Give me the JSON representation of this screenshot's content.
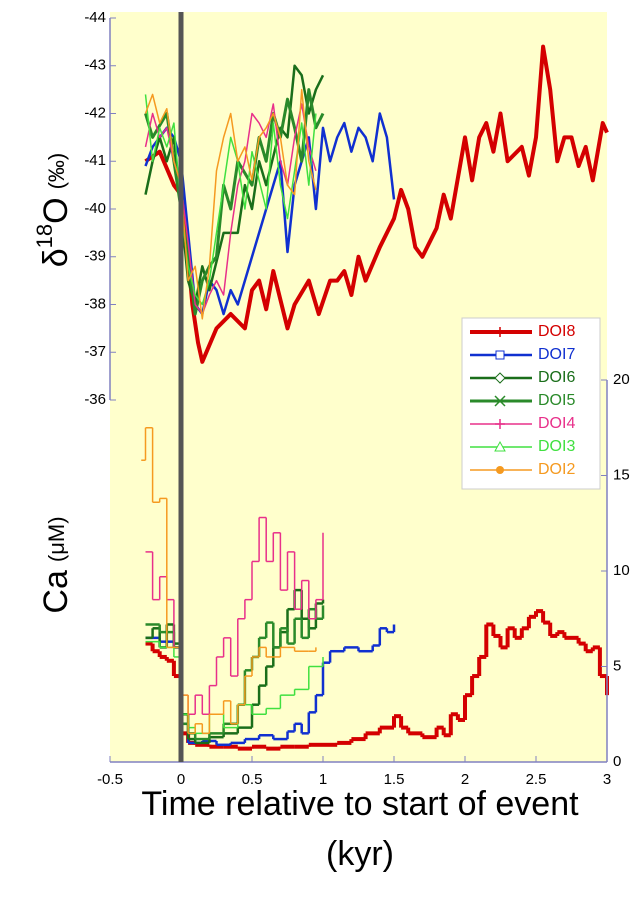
{
  "chart_data": [
    {
      "type": "line",
      "y_label_parts": [
        "δ",
        "18",
        "O",
        "(‰)"
      ],
      "xlim": [
        -0.5,
        3
      ],
      "ylim": [
        -36,
        -44
      ],
      "yticks": [
        -44,
        -43,
        -42,
        -41,
        -40,
        -39,
        -38,
        -37,
        -36
      ],
      "axis_side": "left",
      "legend": "right",
      "series": [
        {
          "name": "DOI8",
          "color": "#d40000",
          "width": 4,
          "marker": "plus",
          "x": [
            -0.25,
            -0.15,
            -0.05,
            0,
            0.05,
            0.08,
            0.12,
            0.15,
            0.25,
            0.35,
            0.45,
            0.5,
            0.55,
            0.6,
            0.65,
            0.75,
            0.8,
            0.9,
            0.97,
            1.05,
            1.1,
            1.15,
            1.2,
            1.25,
            1.3,
            1.4,
            1.45,
            1.5,
            1.55,
            1.6,
            1.65,
            1.7,
            1.8,
            1.85,
            1.9,
            2.0,
            2.05,
            2.1,
            2.15,
            2.2,
            2.25,
            2.3,
            2.4,
            2.45,
            2.5,
            2.55,
            2.6,
            2.65,
            2.7,
            2.75,
            2.8,
            2.85,
            2.9,
            2.97,
            3.0
          ],
          "values": [
            -41,
            -41.2,
            -40.5,
            -40.3,
            -39,
            -38,
            -37.2,
            -36.8,
            -37.5,
            -37.8,
            -37.5,
            -38.3,
            -38.5,
            -37.9,
            -38.7,
            -37.5,
            -38,
            -38.5,
            -37.8,
            -38.5,
            -38.5,
            -38.7,
            -38.2,
            -39,
            -38.5,
            -39.2,
            -39.5,
            -39.8,
            -40.4,
            -40,
            -39.2,
            -39,
            -39.6,
            -40.3,
            -39.8,
            -41.5,
            -40.6,
            -41.5,
            -41.8,
            -41.2,
            -42,
            -41,
            -41.3,
            -40.7,
            -41.5,
            -43.4,
            -42.5,
            -41,
            -41.5,
            -41.5,
            -40.9,
            -41.3,
            -40.6,
            -41.8,
            -41.6
          ]
        },
        {
          "name": "DOI7",
          "color": "#1030d0",
          "width": 2.5,
          "marker": "square",
          "x": [
            -0.25,
            -0.2,
            -0.1,
            -0.05,
            0,
            0.05,
            0.1,
            0.15,
            0.2,
            0.25,
            0.3,
            0.35,
            0.4,
            0.5,
            0.55,
            0.6,
            0.7,
            0.75,
            0.8,
            0.85,
            0.9,
            0.95,
            1.0,
            1.05,
            1.1,
            1.15,
            1.2,
            1.25,
            1.3,
            1.35,
            1.4,
            1.45,
            1.5
          ],
          "values": [
            -40.9,
            -41.3,
            -41.7,
            -41.5,
            -41,
            -39.5,
            -38,
            -37.8,
            -38.5,
            -38.3,
            -37.8,
            -38.3,
            -38,
            -39,
            -39.5,
            -40,
            -41,
            -39.1,
            -40.5,
            -41,
            -41.5,
            -40,
            -41.7,
            -41,
            -41.5,
            -41.8,
            -41.2,
            -41.7,
            -41.5,
            -41,
            -42,
            -41.5,
            -40.2
          ]
        },
        {
          "name": "DOI6",
          "color": "#1a6e1a",
          "width": 2.5,
          "marker": "diamond",
          "x": [
            -0.25,
            -0.2,
            -0.15,
            -0.1,
            -0.05,
            0,
            0.05,
            0.1,
            0.15,
            0.2,
            0.3,
            0.4,
            0.45,
            0.5,
            0.55,
            0.6,
            0.7,
            0.75,
            0.8,
            0.85,
            0.9,
            0.95,
            1.0
          ],
          "values": [
            -40.3,
            -41,
            -41.5,
            -41,
            -41.5,
            -40,
            -38.5,
            -38,
            -38.8,
            -38.3,
            -39.5,
            -39.5,
            -40.5,
            -40,
            -41,
            -40.5,
            -41.7,
            -41.5,
            -43,
            -42.8,
            -42,
            -42.5,
            -42.8
          ]
        },
        {
          "name": "DOI5",
          "color": "#2a8a2a",
          "width": 3,
          "marker": "x",
          "x": [
            -0.25,
            -0.2,
            -0.1,
            -0.05,
            0,
            0.05,
            0.1,
            0.15,
            0.2,
            0.25,
            0.3,
            0.35,
            0.4,
            0.5,
            0.55,
            0.6,
            0.65,
            0.7,
            0.75,
            0.8,
            0.85,
            0.9,
            0.95,
            1.0
          ],
          "values": [
            -42,
            -41.5,
            -42,
            -41,
            -40,
            -39,
            -37.8,
            -38.5,
            -38.8,
            -39,
            -40.5,
            -40,
            -41,
            -40.5,
            -41.5,
            -41,
            -42,
            -41.5,
            -42.3,
            -41.7,
            -41,
            -42.5,
            -41.7,
            -42
          ]
        },
        {
          "name": "DOI4",
          "color": "#e8308a",
          "width": 1.5,
          "marker": "plus",
          "x": [
            -0.25,
            -0.2,
            -0.15,
            -0.1,
            -0.05,
            0,
            0.05,
            0.1,
            0.15,
            0.2,
            0.25,
            0.3,
            0.35,
            0.4,
            0.45,
            0.5,
            0.55,
            0.6,
            0.65,
            0.7,
            0.75,
            0.8,
            0.85,
            0.9,
            0.95
          ],
          "values": [
            -41.3,
            -42,
            -41.5,
            -41.7,
            -41,
            -40.5,
            -39.3,
            -38,
            -37.8,
            -38.2,
            -38.5,
            -38.2,
            -39.5,
            -40.5,
            -41,
            -42,
            -41.8,
            -41.5,
            -42.2,
            -41,
            -40.5,
            -41.5,
            -42.2,
            -41.3,
            -40.8
          ]
        },
        {
          "name": "DOI3",
          "color": "#40e040",
          "width": 1.5,
          "marker": "triangle",
          "x": [
            -0.25,
            -0.2,
            -0.15,
            -0.1,
            -0.05,
            0,
            0.05,
            0.1,
            0.15,
            0.2,
            0.25,
            0.3,
            0.35,
            0.4,
            0.45,
            0.5,
            0.6,
            0.65,
            0.7,
            0.75,
            0.8,
            0.85,
            0.9,
            0.95
          ],
          "values": [
            -42.4,
            -41,
            -41.7,
            -41.3,
            -41.8,
            -40,
            -38.8,
            -38.2,
            -38,
            -38.5,
            -39.5,
            -40.5,
            -41.5,
            -41,
            -40,
            -41.2,
            -40,
            -41.8,
            -40.5,
            -39.8,
            -40.8,
            -41.8,
            -40.5,
            -42
          ]
        },
        {
          "name": "DOI2",
          "color": "#f59a20",
          "width": 1.5,
          "marker": "circle",
          "x": [
            -0.25,
            -0.2,
            -0.15,
            -0.1,
            -0.05,
            0,
            0.05,
            0.1,
            0.15,
            0.2,
            0.25,
            0.3,
            0.35,
            0.4,
            0.45,
            0.5,
            0.55,
            0.6,
            0.65,
            0.7,
            0.75,
            0.8,
            0.85,
            0.9,
            0.95
          ],
          "values": [
            -42,
            -42.4,
            -41.8,
            -42.1,
            -41,
            -40.5,
            -38.5,
            -38.8,
            -37.7,
            -38.8,
            -40.8,
            -41.5,
            -42,
            -41,
            -41.3,
            -40.6,
            -41.5,
            -41.7,
            -42,
            -41.5,
            -40.5,
            -40.3,
            -42.5,
            -41,
            -40.4
          ]
        }
      ]
    },
    {
      "type": "step",
      "y_label_parts": [
        "Ca",
        "(μM)"
      ],
      "xlim": [
        -0.5,
        3
      ],
      "xticks": [
        -0.5,
        0,
        0.5,
        1,
        1.5,
        2,
        2.5,
        3
      ],
      "y2lim": [
        0,
        20
      ],
      "y2ticks": [
        0,
        5,
        10,
        15,
        20
      ],
      "vline": 0,
      "x_label": [
        "Time relative to start of event",
        "(kyr)"
      ],
      "series": [
        {
          "color": "#d40000",
          "width": 4,
          "axis": "y2",
          "x": [
            -0.25,
            -0.2,
            -0.15,
            -0.1,
            -0.05,
            0,
            0.05,
            0.1,
            0.2,
            0.3,
            0.4,
            0.5,
            0.6,
            0.7,
            0.8,
            0.9,
            1.0,
            1.1,
            1.2,
            1.3,
            1.4,
            1.5,
            1.55,
            1.6,
            1.7,
            1.8,
            1.85,
            1.9,
            1.95,
            2.0,
            2.05,
            2.1,
            2.15,
            2.2,
            2.25,
            2.3,
            2.35,
            2.4,
            2.45,
            2.5,
            2.55,
            2.6,
            2.65,
            2.7,
            2.8,
            2.85,
            2.9,
            2.95,
            3.0
          ],
          "values": [
            6.2,
            5.8,
            5.5,
            5.3,
            4.5,
            1.5,
            1.0,
            0.9,
            0.8,
            0.8,
            0.7,
            0.8,
            0.7,
            0.8,
            0.8,
            0.9,
            0.9,
            1.0,
            1.2,
            1.5,
            1.8,
            2.4,
            1.8,
            1.5,
            1.3,
            1.8,
            1.4,
            2.5,
            2.2,
            3.5,
            4.5,
            5.5,
            7.2,
            6.6,
            6.0,
            7.0,
            6.5,
            7.0,
            7.6,
            7.9,
            7.3,
            6.6,
            6.8,
            6.5,
            6.2,
            5.8,
            6.0,
            4.5,
            3.5
          ]
        },
        {
          "color": "#1030d0",
          "width": 2.5,
          "axis": "y2",
          "x": [
            -0.25,
            -0.15,
            -0.05,
            0,
            0.05,
            0.15,
            0.25,
            0.35,
            0.45,
            0.55,
            0.65,
            0.75,
            0.8,
            0.85,
            0.9,
            0.95,
            1.0,
            1.05,
            1.15,
            1.25,
            1.35,
            1.4,
            1.45,
            1.5
          ],
          "values": [
            6.5,
            6.3,
            6.0,
            2.0,
            1.0,
            1.1,
            0.9,
            1.0,
            1.2,
            1.4,
            1.2,
            1.6,
            2.0,
            1.5,
            2.6,
            3.5,
            5.2,
            5.8,
            6.0,
            5.8,
            6.1,
            7.0,
            6.8,
            7.2
          ]
        },
        {
          "color": "#1a6e1a",
          "width": 2.5,
          "axis": "y2",
          "x": [
            -0.25,
            -0.2,
            -0.15,
            -0.1,
            -0.05,
            0,
            0.05,
            0.1,
            0.2,
            0.3,
            0.4,
            0.5,
            0.55,
            0.6,
            0.65,
            0.7,
            0.75,
            0.8,
            0.85,
            0.9,
            0.95,
            1.0
          ],
          "values": [
            6.5,
            7.0,
            6.0,
            7.2,
            6.2,
            2.5,
            1.2,
            1.0,
            1.3,
            1.5,
            1.8,
            3.0,
            4.0,
            5.0,
            6.0,
            6.8,
            8.0,
            9.0,
            7.5,
            7.0,
            8.3,
            8.5
          ]
        },
        {
          "color": "#2a8a2a",
          "width": 2.5,
          "axis": "y2",
          "x": [
            -0.25,
            -0.15,
            -0.05,
            0,
            0.05,
            0.1,
            0.2,
            0.3,
            0.4,
            0.45,
            0.5,
            0.55,
            0.6,
            0.65,
            0.7,
            0.75,
            0.8,
            0.85,
            0.9,
            0.95,
            1.0
          ],
          "values": [
            7.2,
            6.8,
            6.0,
            2.0,
            1.5,
            1.2,
            1.5,
            2.0,
            3.0,
            4.8,
            5.5,
            6.5,
            7.3,
            6.0,
            7.0,
            6.2,
            7.5,
            6.5,
            8.0,
            7.5,
            8.2
          ]
        },
        {
          "color": "#e8308a",
          "width": 1.5,
          "axis": "y2",
          "x": [
            -0.25,
            -0.2,
            -0.15,
            -0.1,
            -0.05,
            0,
            0.05,
            0.1,
            0.15,
            0.2,
            0.25,
            0.3,
            0.35,
            0.4,
            0.45,
            0.5,
            0.55,
            0.6,
            0.65,
            0.7,
            0.75,
            0.8,
            0.85,
            0.9,
            0.95,
            1.0
          ],
          "values": [
            11,
            8.5,
            9.7,
            8.5,
            6.0,
            3.5,
            2.5,
            3.5,
            2.5,
            4.0,
            5.5,
            6.5,
            4.5,
            7.5,
            8.5,
            10.5,
            12.8,
            10.5,
            12.0,
            9.0,
            11.0,
            8.0,
            9.5,
            7.5,
            8.5,
            12.0
          ]
        },
        {
          "color": "#40e040",
          "width": 1.5,
          "axis": "y2",
          "x": [
            -0.25,
            -0.15,
            -0.05,
            0,
            0.05,
            0.1,
            0.2,
            0.3,
            0.4,
            0.5,
            0.6,
            0.7,
            0.8,
            0.9,
            1.0
          ],
          "values": [
            6.3,
            6.0,
            5.5,
            2.5,
            1.8,
            1.5,
            2.5,
            1.8,
            3.0,
            2.5,
            2.8,
            3.5,
            3.8,
            5.0,
            5.5
          ]
        },
        {
          "color": "#f59a20",
          "width": 1.5,
          "axis": "y2",
          "x": [
            -0.28,
            -0.25,
            -0.2,
            -0.15,
            -0.1,
            0,
            0.05,
            0.1,
            0.15,
            0.2,
            0.3,
            0.35,
            0.4,
            0.45,
            0.5,
            0.55,
            0.6,
            0.7,
            0.8,
            0.9,
            0.95
          ],
          "values": [
            15.8,
            17.5,
            13.6,
            13.8,
            6.0,
            3.5,
            1.5,
            2.0,
            1.5,
            2.5,
            3.2,
            2.0,
            3.0,
            4.5,
            5.5,
            6.0,
            5.5,
            6.0,
            5.8,
            5.8,
            6.0
          ]
        }
      ]
    }
  ]
}
